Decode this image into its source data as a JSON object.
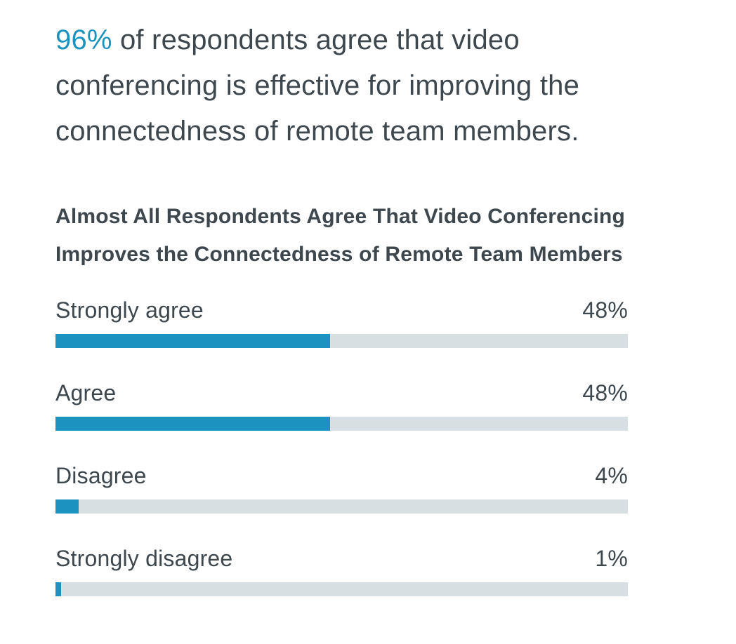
{
  "headline": {
    "highlight": "96%",
    "line1_rest": " of respondents agree that video",
    "line2": "conferencing is effective for improving the",
    "line3": "connectedness of remote team members."
  },
  "chart_data": {
    "type": "bar",
    "orientation": "horizontal",
    "title": "Almost All Respondents Agree That Video Conferencing Improves the Connectedness of Remote Team Members",
    "title_lines": [
      "Almost All Respondents Agree That Video Conferencing",
      "Improves the Connectedness of Remote Team Members"
    ],
    "categories": [
      "Strongly agree",
      "Agree",
      "Disagree",
      "Strongly disagree"
    ],
    "values": [
      48,
      48,
      4,
      1
    ],
    "value_labels": [
      "48%",
      "48%",
      "4%",
      "1%"
    ],
    "xlim": [
      0,
      100
    ],
    "grid": false,
    "legend": "none",
    "colors": {
      "bar_fill": "#1b92bf",
      "bar_track": "#d7dfe3",
      "highlight_text": "#1b92bf",
      "body_text": "#3d474d"
    }
  }
}
